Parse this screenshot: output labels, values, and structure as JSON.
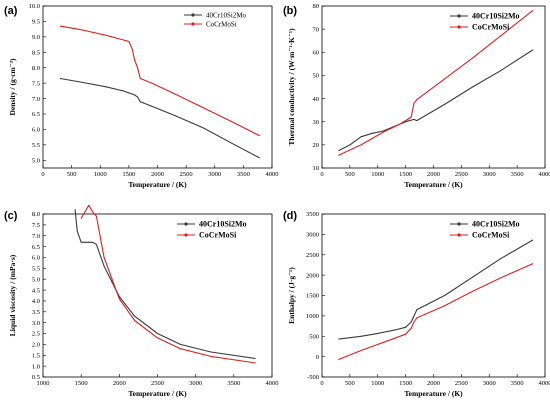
{
  "chart_data": [
    {
      "id": "a",
      "panel_label": "(a)",
      "type": "line",
      "xlabel": "Temperature / (K)",
      "ylabel": "Density / (g·cm⁻³)",
      "xlim": [
        0,
        4000
      ],
      "ylim": [
        4.75,
        10.0
      ],
      "xticks": [
        0,
        500,
        1000,
        1500,
        2000,
        2500,
        3000,
        3500,
        4000
      ],
      "yticks": [
        5.0,
        5.5,
        6.0,
        6.5,
        7.0,
        7.5,
        8.0,
        8.5,
        9.0,
        9.5,
        10.0
      ],
      "ytick_decimals": 1,
      "legend": {
        "position": "top-right",
        "style": "small"
      },
      "series": [
        {
          "name": "40Cr10Si2Mo",
          "color": "#3a3a3a",
          "x": [
            300,
            700,
            1100,
            1400,
            1600,
            1650,
            1700,
            1900,
            2300,
            2800,
            3300,
            3780
          ],
          "y": [
            7.65,
            7.52,
            7.38,
            7.25,
            7.12,
            7.05,
            6.9,
            6.75,
            6.45,
            6.05,
            5.55,
            5.08
          ]
        },
        {
          "name": "CoCrMoSi",
          "color": "#e02020",
          "x": [
            300,
            700,
            1100,
            1400,
            1500,
            1560,
            1600,
            1650,
            1700,
            1900,
            2300,
            2800,
            3300,
            3780
          ],
          "y": [
            9.35,
            9.22,
            9.05,
            8.9,
            8.85,
            8.6,
            8.25,
            8.0,
            7.65,
            7.5,
            7.15,
            6.7,
            6.25,
            5.8
          ]
        }
      ]
    },
    {
      "id": "b",
      "panel_label": "(b)",
      "type": "line",
      "xlabel": "Temperature / (K)",
      "ylabel": "Thermal conductivity / (W·m⁻¹·K⁻¹)",
      "xlim": [
        0,
        4000
      ],
      "ylim": [
        10,
        80
      ],
      "xticks": [
        0,
        500,
        1000,
        1500,
        2000,
        2500,
        3000,
        3500,
        4000
      ],
      "yticks": [
        10,
        20,
        30,
        40,
        50,
        60,
        70,
        80
      ],
      "ytick_decimals": 0,
      "legend": {
        "position": "top-right",
        "style": "large"
      },
      "series": [
        {
          "name": "40Cr10Si2Mo",
          "color": "#3a3a3a",
          "x": [
            300,
            500,
            700,
            900,
            1100,
            1300,
            1500,
            1650,
            1700,
            2200,
            2700,
            3200,
            3780
          ],
          "y": [
            17.5,
            20.0,
            23.5,
            25.0,
            26.0,
            28.0,
            30.0,
            31.0,
            30.5,
            37.5,
            45.0,
            52.0,
            61.0
          ]
        },
        {
          "name": "CoCrMoSi",
          "color": "#e02020",
          "x": [
            300,
            700,
            1100,
            1400,
            1600,
            1650,
            1700,
            2200,
            2700,
            3200,
            3780
          ],
          "y": [
            15.5,
            20.0,
            25.5,
            29.0,
            32.0,
            38.0,
            39.5,
            48.5,
            57.5,
            67.0,
            78.0
          ]
        }
      ]
    },
    {
      "id": "c",
      "panel_label": "(c)",
      "type": "line",
      "xlabel": "Temperature / (K)",
      "ylabel": "Liquid viscosity / (mPa·s)",
      "xlim": [
        1000,
        4000
      ],
      "ylim": [
        0.5,
        8.0
      ],
      "xticks": [
        1000,
        1500,
        2000,
        2500,
        3000,
        3500,
        4000
      ],
      "yticks": [
        0.5,
        1.0,
        1.5,
        2.0,
        2.5,
        3.0,
        3.5,
        4.0,
        4.5,
        5.0,
        5.5,
        6.0,
        6.5,
        7.0,
        7.5,
        8.0
      ],
      "ytick_decimals": 1,
      "legend": {
        "position": "top-right",
        "style": "large"
      },
      "series": [
        {
          "name": "40Cr10Si2Mo",
          "color": "#3a3a3a",
          "x": [
            1420,
            1450,
            1500,
            1550,
            1600,
            1650,
            1700,
            1800,
            2000,
            2200,
            2500,
            2800,
            3200,
            3780
          ],
          "y": [
            8.2,
            7.2,
            6.7,
            6.7,
            6.7,
            6.7,
            6.6,
            5.6,
            4.2,
            3.3,
            2.5,
            2.0,
            1.65,
            1.35
          ]
        },
        {
          "name": "CoCrMoSi",
          "color": "#e02020",
          "x": [
            1500,
            1550,
            1600,
            1650,
            1700,
            1800,
            2000,
            2200,
            2500,
            2800,
            3200,
            3780
          ],
          "y": [
            7.8,
            8.1,
            8.4,
            8.1,
            7.9,
            6.0,
            4.1,
            3.1,
            2.3,
            1.8,
            1.45,
            1.15
          ]
        }
      ]
    },
    {
      "id": "d",
      "panel_label": "(d)",
      "type": "line",
      "xlabel": "Temperature / (K)",
      "ylabel": "Enthalpy / (J·g⁻¹)",
      "xlim": [
        0,
        4000
      ],
      "ylim": [
        -500,
        3500
      ],
      "xticks": [
        0,
        500,
        1000,
        1500,
        2000,
        2500,
        3000,
        3500,
        4000
      ],
      "yticks": [
        -500,
        0,
        500,
        1000,
        1500,
        2000,
        2500,
        3000,
        3500
      ],
      "ytick_decimals": 0,
      "legend": {
        "position": "top-right",
        "style": "large"
      },
      "series": [
        {
          "name": "40Cr10Si2Mo",
          "color": "#3a3a3a",
          "x": [
            300,
            700,
            1000,
            1300,
            1500,
            1600,
            1650,
            1700,
            2200,
            2700,
            3200,
            3780
          ],
          "y": [
            430,
            500,
            570,
            650,
            720,
            850,
            1000,
            1150,
            1500,
            1950,
            2400,
            2860
          ]
        },
        {
          "name": "CoCrMoSi",
          "color": "#e02020",
          "x": [
            300,
            700,
            1000,
            1300,
            1500,
            1600,
            1650,
            1700,
            2200,
            2700,
            3200,
            3780
          ],
          "y": [
            -70,
            150,
            300,
            450,
            550,
            700,
            850,
            950,
            1250,
            1600,
            1930,
            2280
          ]
        }
      ]
    }
  ]
}
